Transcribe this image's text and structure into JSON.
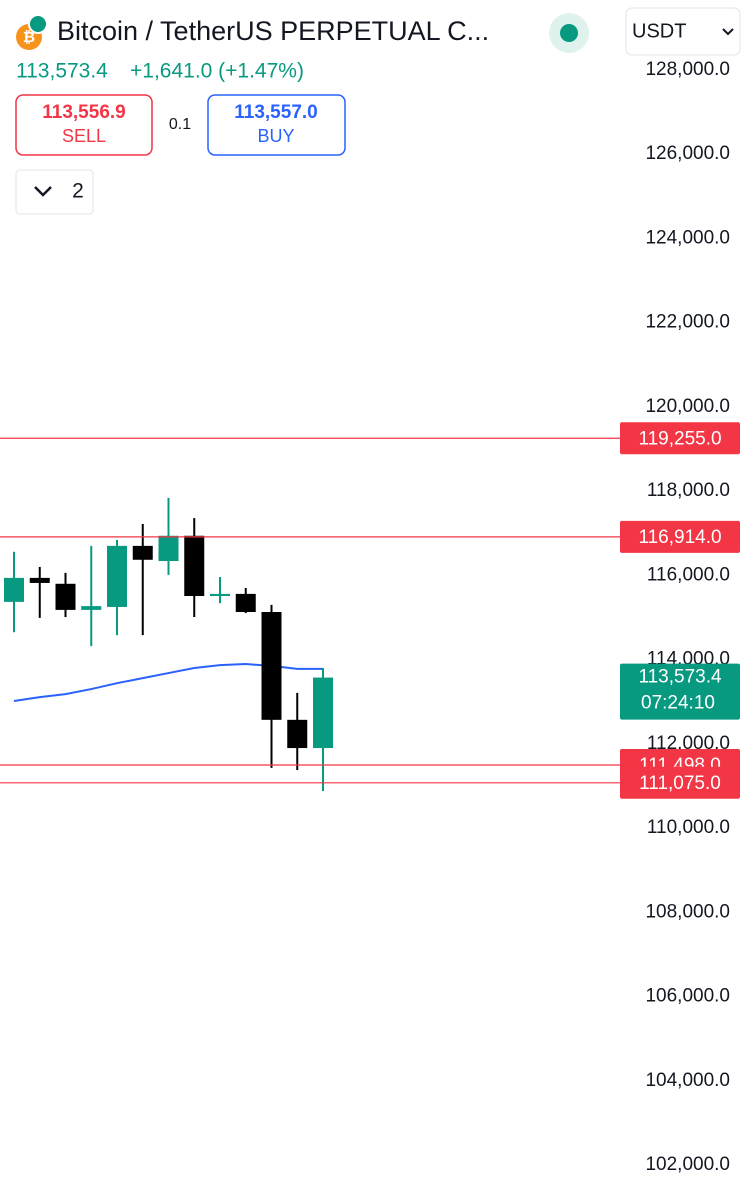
{
  "header": {
    "title": "Bitcoin / TetherUS PERPETUAL C...",
    "currency": "USDT",
    "price": "113,573.4",
    "change": "+1,641.0 (+1.47%)",
    "sell_price": "113,556.9",
    "sell_label": "SELL",
    "quantity": "0.1",
    "buy_price": "113,557.0",
    "buy_label": "BUY",
    "collapse_count": "2"
  },
  "chart_data": {
    "type": "candlestick",
    "ylim": [
      101170,
      129660
    ],
    "yticks": [
      {
        "value": 128000,
        "label": "128,000.0"
      },
      {
        "value": 126000,
        "label": "126,000.0"
      },
      {
        "value": 124000,
        "label": "124,000.0"
      },
      {
        "value": 122000,
        "label": "122,000.0"
      },
      {
        "value": 120000,
        "label": "120,000.0"
      },
      {
        "value": 118000,
        "label": "118,000.0"
      },
      {
        "value": 116000,
        "label": "116,000.0"
      },
      {
        "value": 114000,
        "label": "114,000.0"
      },
      {
        "value": 112000,
        "label": "112,000.0"
      },
      {
        "value": 110000,
        "label": "110,000.0"
      },
      {
        "value": 108000,
        "label": "108,000.0"
      },
      {
        "value": 106000,
        "label": "106,000.0"
      },
      {
        "value": 104000,
        "label": "104,000.0"
      },
      {
        "value": 102000,
        "label": "102,000.0"
      }
    ],
    "up_color": "#089981",
    "down_color": "#000000",
    "open": [
      115370,
      115940,
      115800,
      115180,
      115250,
      116700,
      116340,
      116940,
      115510,
      115560,
      115130,
      112570,
      111900
    ],
    "high": [
      116560,
      116200,
      116060,
      116700,
      116840,
      117220,
      117840,
      117360,
      115960,
      115700,
      115300,
      113210,
      113800
    ],
    "low": [
      114650,
      114990,
      115010,
      114320,
      114580,
      114580,
      116010,
      115010,
      115340,
      115105,
      111430,
      111380,
      110880
    ],
    "close": [
      115940,
      115820,
      115180,
      115270,
      116700,
      116370,
      116940,
      115510,
      115560,
      115130,
      112570,
      111900,
      113573.4
    ],
    "moving_average": {
      "color": "#2962ff",
      "values": [
        113017,
        113110,
        113180,
        113300,
        113440,
        113560,
        113680,
        113800,
        113870,
        113895,
        113850,
        113780,
        113780
      ]
    },
    "line_color": "#f23645",
    "price_lines": [
      {
        "value": 119255,
        "label": "119,255.0"
      },
      {
        "value": 116914,
        "label": "116,914.0"
      },
      {
        "value": 111498,
        "label": "111,498.0"
      },
      {
        "value": 111075,
        "label": "111,075.0"
      }
    ],
    "last_price": {
      "value": 113573.4,
      "label": "113,573.4"
    },
    "countdown": "07:24:10"
  }
}
